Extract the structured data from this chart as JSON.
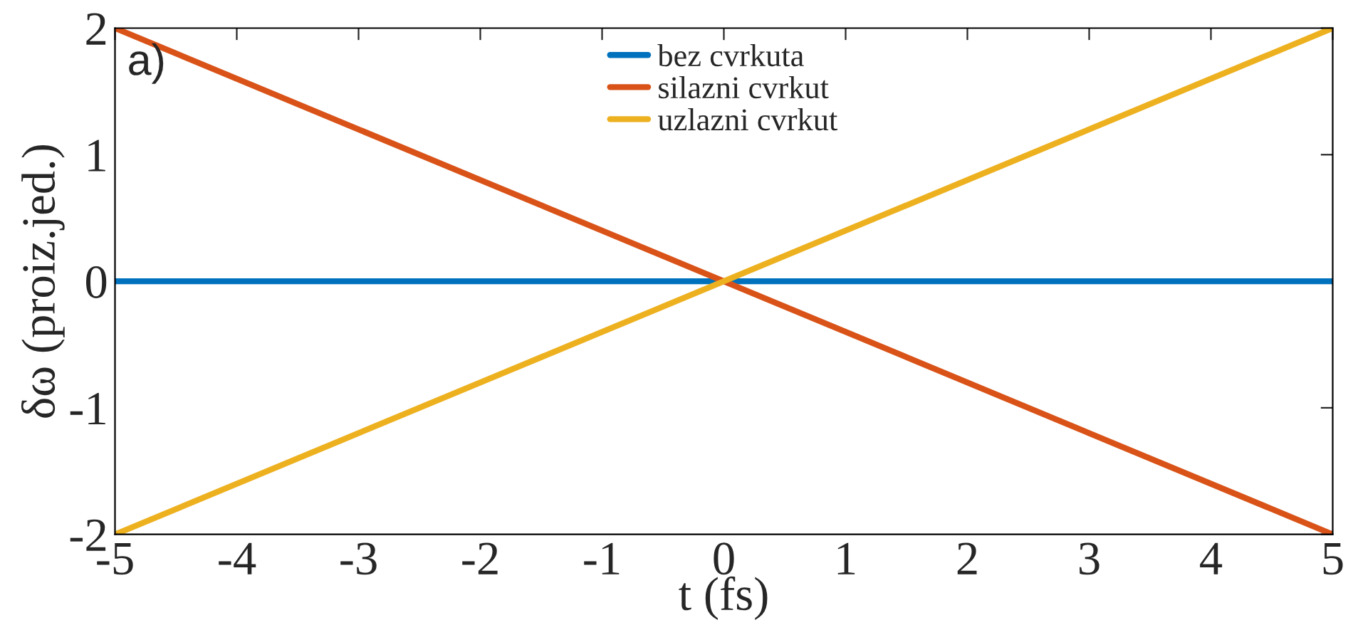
{
  "chart_data": {
    "type": "line",
    "x": [
      -5,
      5
    ],
    "series": [
      {
        "name": "bez cvrkuta",
        "color": "#0072bd",
        "values": [
          0,
          0
        ]
      },
      {
        "name": "silazni cvrkut",
        "color": "#d95319",
        "values": [
          2,
          -2
        ]
      },
      {
        "name": "uzlazni cvrkut",
        "color": "#edb120",
        "values": [
          -2,
          2
        ]
      }
    ],
    "xlabel": "t (fs)",
    "ylabel": "δω (proiz.jed.)",
    "annotations": [
      "a)"
    ],
    "xlim": [
      -5,
      5
    ],
    "ylim": [
      -2,
      2
    ],
    "xticks": [
      -5,
      -4,
      -3,
      -2,
      -1,
      0,
      1,
      2,
      3,
      4,
      5
    ],
    "yticks": [
      -2,
      -1,
      0,
      1,
      2
    ],
    "grid": false,
    "legend": "top",
    "marker": "none",
    "line_style": "solid"
  }
}
